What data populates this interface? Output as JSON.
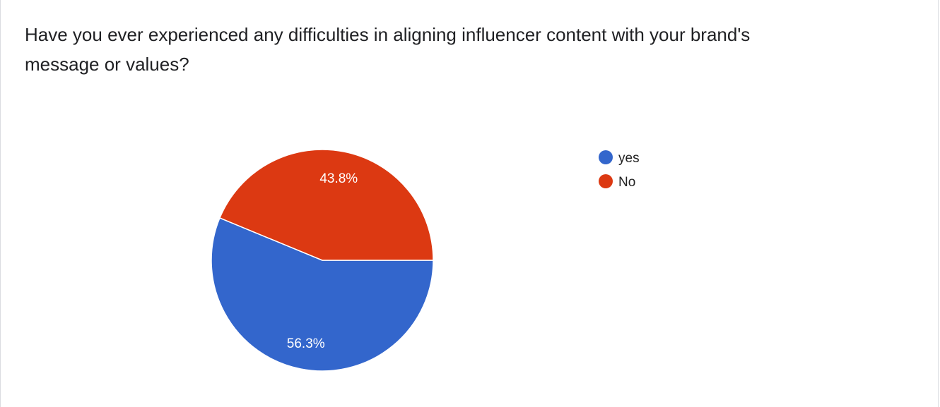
{
  "question": {
    "title": "Have you ever experienced any difficulties in aligning influencer content with your brand's message or values?"
  },
  "chart_data": {
    "type": "pie",
    "title": "Have you ever experienced any difficulties in aligning influencer content with your brand's message or values?",
    "categories": [
      "yes",
      "No"
    ],
    "values": [
      56.3,
      43.8
    ],
    "labels": [
      "56.3%",
      "43.8%"
    ],
    "colors": [
      "#3366cc",
      "#dc3912"
    ],
    "legend_position": "right",
    "start_direction": "east",
    "direction": "clockwise"
  },
  "legend": {
    "items": [
      {
        "label": "yes",
        "color": "#3366cc"
      },
      {
        "label": "No",
        "color": "#dc3912"
      }
    ]
  }
}
